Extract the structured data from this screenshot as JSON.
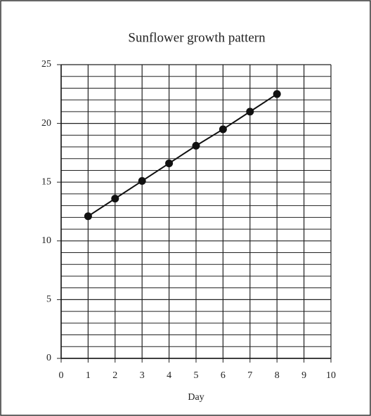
{
  "chart_data": {
    "type": "line",
    "title": "Sunflower growth pattern",
    "xlabel": "Day",
    "x": [
      1,
      2,
      3,
      4,
      5,
      6,
      7,
      8
    ],
    "series": [
      {
        "color": "#111111",
        "values": [
          12.1,
          13.6,
          15.1,
          16.6,
          18.1,
          19.5,
          21.0,
          22.5
        ]
      }
    ],
    "xlim": [
      0,
      10
    ],
    "xticks": [
      0,
      1,
      2,
      3,
      4,
      5,
      6,
      7,
      8,
      9,
      10
    ],
    "ylim": [
      0,
      25
    ],
    "yticks": [
      0,
      5,
      10,
      15,
      20,
      25
    ],
    "grid": true,
    "minor_grid": true
  }
}
